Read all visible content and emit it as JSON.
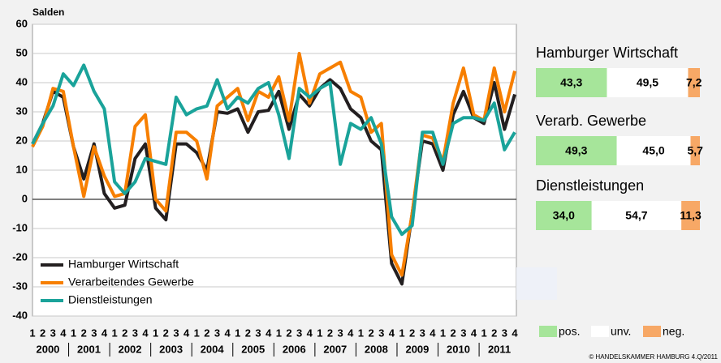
{
  "chart_data": [
    {
      "type": "line",
      "title": "Salden",
      "categories": [
        "1",
        "2",
        "3",
        "4",
        "1",
        "2",
        "3",
        "4",
        "1",
        "2",
        "3",
        "4",
        "1",
        "2",
        "3",
        "4",
        "1",
        "2",
        "3",
        "4",
        "1",
        "2",
        "3",
        "4",
        "1",
        "2",
        "3",
        "4",
        "1",
        "2",
        "3",
        "4",
        "1",
        "2",
        "3",
        "4",
        "1",
        "2",
        "3",
        "4",
        "1",
        "2",
        "3",
        "4",
        "1",
        "2",
        "3",
        "4"
      ],
      "year_groups": [
        "2000",
        "2001",
        "2002",
        "2003",
        "2004",
        "2005",
        "2006",
        "2007",
        "2008",
        "2009",
        "2010",
        "2011"
      ],
      "ylim": [
        -40,
        60
      ],
      "yticks": [
        -40,
        -30,
        -20,
        -10,
        0,
        10,
        20,
        30,
        40,
        50,
        60
      ],
      "grid": true,
      "legend": "lower left",
      "series": [
        {
          "name": "Hamburger Wirtschaft",
          "color": "#231f20",
          "values": [
            19,
            26,
            37,
            35,
            18,
            7,
            19,
            2,
            -3,
            -2,
            14,
            19,
            -3,
            -7,
            19,
            19,
            16,
            10,
            30,
            29.5,
            31,
            23,
            30,
            30.5,
            37,
            24,
            36,
            32,
            38,
            41,
            38,
            31,
            28,
            20,
            17,
            -22,
            -29,
            -5,
            20,
            19,
            10,
            29,
            37,
            28,
            26,
            40,
            24,
            36
          ]
        },
        {
          "name": "Verarbeitendes Gewerbe",
          "color": "#f77f00",
          "values": [
            18,
            25,
            38,
            37,
            18,
            1,
            18,
            8,
            1,
            2,
            25,
            29,
            0,
            -4,
            23,
            23,
            20,
            7,
            32,
            35,
            38,
            27,
            37,
            35,
            42,
            27,
            50,
            33,
            43,
            45,
            47,
            37,
            35,
            23,
            26,
            -19,
            -26,
            -5,
            22,
            21,
            13,
            33,
            45,
            29,
            27,
            45,
            30,
            44
          ]
        },
        {
          "name": "Dienstleistungen",
          "color": "#1aa39a",
          "values": [
            19,
            26,
            32,
            43,
            39,
            46,
            37,
            31,
            6,
            2,
            6,
            14,
            13,
            12,
            35,
            29,
            31,
            32,
            41,
            31,
            35,
            33,
            38,
            40,
            29,
            14,
            38,
            35,
            38,
            40,
            12,
            26,
            24,
            28,
            19,
            -6,
            -12,
            -9,
            23,
            23,
            12,
            26,
            28,
            28,
            27,
            33,
            17,
            23
          ]
        }
      ]
    },
    {
      "type": "stacked-hbar",
      "categories": [
        "Hamburger Wirtschaft",
        "Verarb. Gewerbe",
        "Dienstleistungen"
      ],
      "series": [
        {
          "name": "pos.",
          "color": "#a6e59a",
          "values": [
            43.3,
            49.3,
            34.0
          ],
          "value_labels": [
            "43,3",
            "49,3",
            "34,0"
          ]
        },
        {
          "name": "unv.",
          "color": "#ffffff",
          "values": [
            49.5,
            45.0,
            54.7
          ],
          "value_labels": [
            "49,5",
            "45,0",
            "54,7"
          ]
        },
        {
          "name": "neg.",
          "color": "#f7a866",
          "values": [
            7.2,
            5.7,
            11.3
          ],
          "value_labels": [
            "7,2",
            "5,7",
            "11,3"
          ]
        }
      ]
    }
  ],
  "footer": "© HANDELSKAMMER HAMBURG 4.Q/2011"
}
